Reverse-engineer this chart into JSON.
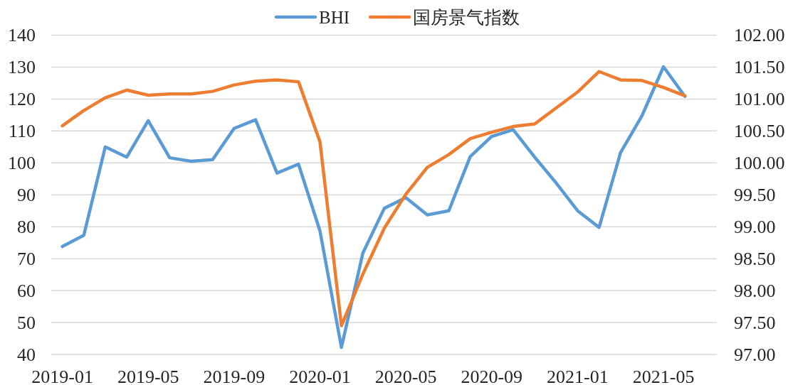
{
  "chart_data": {
    "type": "line",
    "legend": "top",
    "grid": "y",
    "line_style": "solid",
    "x": [
      "2019-01",
      "2019-02",
      "2019-03",
      "2019-04",
      "2019-05",
      "2019-06",
      "2019-07",
      "2019-08",
      "2019-09",
      "2019-10",
      "2019-11",
      "2019-12",
      "2020-01",
      "2020-02",
      "2020-03",
      "2020-04",
      "2020-05",
      "2020-06",
      "2020-07",
      "2020-08",
      "2020-09",
      "2020-10",
      "2020-11",
      "2020-12",
      "2021-01",
      "2021-02",
      "2021-03",
      "2021-04",
      "2021-05",
      "2021-06"
    ],
    "xlim": [
      "2018-12-16",
      "2021-07-16"
    ],
    "xticks": [
      "2019-01",
      "2019-05",
      "2019-09",
      "2020-01",
      "2020-05",
      "2020-09",
      "2021-01",
      "2021-05"
    ],
    "ylim": [
      40,
      140
    ],
    "yticks": [
      40,
      50,
      60,
      70,
      80,
      90,
      100,
      110,
      120,
      130,
      140
    ],
    "y2lim": [
      97,
      102
    ],
    "y2ticks": [
      {
        "value": 97,
        "label": "97.00"
      },
      {
        "value": 97.5,
        "label": "97.50"
      },
      {
        "value": 98,
        "label": "98.00"
      },
      {
        "value": 98.5,
        "label": "98.50"
      },
      {
        "value": 99,
        "label": "99.00"
      },
      {
        "value": 99.5,
        "label": "99.50"
      },
      {
        "value": 100,
        "label": "100.00"
      },
      {
        "value": 100.5,
        "label": "100.50"
      },
      {
        "value": 101,
        "label": "101.00"
      },
      {
        "value": 101.5,
        "label": "101.50"
      },
      {
        "value": 102,
        "label": "102.00"
      }
    ],
    "series": [
      {
        "name": "BHI",
        "color": "#5b9bd5",
        "values": [
          73.8,
          77.3,
          105.0,
          101.8,
          113.2,
          101.6,
          100.5,
          101.0,
          110.8,
          113.5,
          96.8,
          99.6,
          78.7,
          42.2,
          71.8,
          85.8,
          89.1,
          83.7,
          85.0,
          102.0,
          108.3,
          110.4,
          101.8,
          93.7,
          85.0,
          79.8,
          103.2,
          114.8,
          130.1,
          120.8
        ]
      },
      {
        "name": "国房景气指数",
        "color": "#ed7d31",
        "axis": "y2",
        "values": [
          100.58,
          100.82,
          101.02,
          101.14,
          101.06,
          101.08,
          101.08,
          101.12,
          101.22,
          101.28,
          101.3,
          101.27,
          100.33,
          97.45,
          98.26,
          98.98,
          99.51,
          99.93,
          100.13,
          100.38,
          100.48,
          100.57,
          100.61,
          100.86,
          101.11,
          101.43,
          101.3,
          101.29,
          101.18,
          101.05
        ]
      }
    ]
  }
}
